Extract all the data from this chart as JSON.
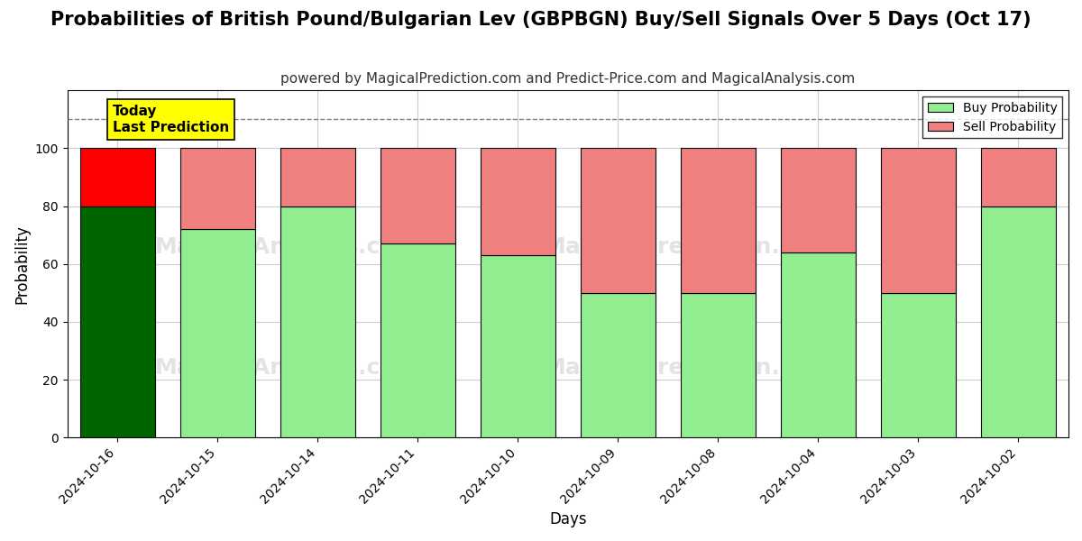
{
  "title": "Probabilities of British Pound/Bulgarian Lev (GBPBGN) Buy/Sell Signals Over 5 Days (Oct 17)",
  "subtitle": "powered by MagicalPrediction.com and Predict-Price.com and MagicalAnalysis.com",
  "xlabel": "Days",
  "ylabel": "Probability",
  "categories": [
    "2024-10-16",
    "2024-10-15",
    "2024-10-14",
    "2024-10-11",
    "2024-10-10",
    "2024-10-09",
    "2024-10-08",
    "2024-10-04",
    "2024-10-03",
    "2024-10-02"
  ],
  "buy_values": [
    80,
    72,
    80,
    67,
    63,
    50,
    50,
    64,
    50,
    80
  ],
  "sell_values": [
    20,
    28,
    20,
    33,
    37,
    50,
    50,
    36,
    50,
    20
  ],
  "today_bar_index": 0,
  "buy_color_today": "#006400",
  "sell_color_today": "#FF0000",
  "buy_color_normal": "#90EE90",
  "sell_color_normal": "#F08080",
  "bar_edge_color": "#000000",
  "bar_edge_width": 0.8,
  "ylim": [
    0,
    120
  ],
  "yticks": [
    0,
    20,
    40,
    60,
    80,
    100
  ],
  "dashed_line_y": 110,
  "background_color": "#ffffff",
  "grid_color": "#cccccc",
  "title_fontsize": 15,
  "subtitle_fontsize": 11,
  "axis_label_fontsize": 12,
  "tick_fontsize": 10,
  "legend_fontsize": 10,
  "annotation_box_color": "#FFFF00",
  "annotation_text": "Today\nLast Prediction",
  "bar_width": 0.75
}
